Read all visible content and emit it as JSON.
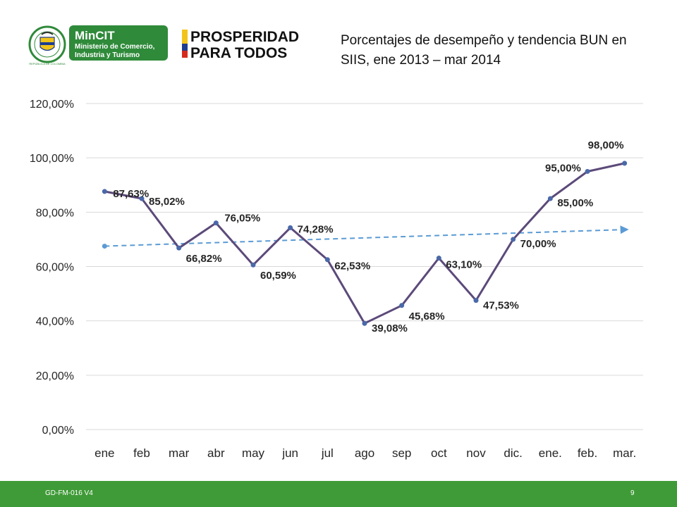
{
  "logos": {
    "seal_text": "REPÚBLICA DE COLOMBIA",
    "mincit_name": "MinCIT",
    "mincit_line1": "Ministerio de Comercio,",
    "mincit_line2": "Industria y Turismo",
    "prosperidad_line1": "PROSPERIDAD",
    "prosperidad_line2": "PARA TODOS"
  },
  "footer": {
    "code": "GD-FM-016 V4",
    "page_number": "9"
  },
  "colors": {
    "series_line": "#5c4a7a",
    "series_marker": "#4a69a9",
    "trend_line": "#5b9bd5",
    "grid": "#d9d9d9",
    "footer_bg": "#3f9b37",
    "mincit_green": "#2f8a3a"
  },
  "chart_data": {
    "type": "line",
    "title": "Porcentajes de desempeño y tendencia  BUN  en\nSIIS, ene 2013 – mar 2014",
    "categories": [
      "ene",
      "feb",
      "mar",
      "abr",
      "may",
      "jun",
      "jul",
      "ago",
      "sep",
      "oct",
      "nov",
      "dic.",
      "ene.",
      "feb.",
      "mar."
    ],
    "series": [
      {
        "values": [
          87.63,
          85.02,
          66.82,
          76.05,
          60.59,
          74.28,
          62.53,
          39.08,
          45.68,
          63.1,
          47.53,
          70.0,
          85.0,
          95.0,
          98.0
        ],
        "labels": [
          "87,63%",
          "85,02%",
          "66,82%",
          "76,05%",
          "60,59%",
          "74,28%",
          "62,53%",
          "39,08%",
          "45,68%",
          "63,10%",
          "47,53%",
          "70,00%",
          "85,00%",
          "95,00%",
          "98,00%"
        ]
      }
    ],
    "trendline": {
      "type": "linear",
      "style": "dashed",
      "start": 67.5,
      "end": 73.6
    },
    "ylim": [
      0,
      120
    ],
    "yticks": [
      0,
      20,
      40,
      60,
      80,
      100,
      120
    ],
    "ytick_labels": [
      "0,00%",
      "20,00%",
      "40,00%",
      "60,00%",
      "80,00%",
      "100,00%",
      "120,00%"
    ],
    "grid": true,
    "legend": "none"
  }
}
